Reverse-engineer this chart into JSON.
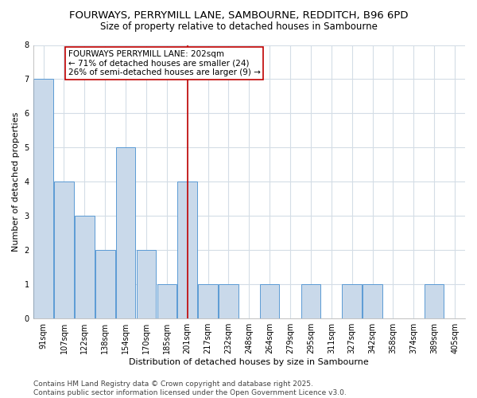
{
  "title": "FOURWAYS, PERRYMILL LANE, SAMBOURNE, REDDITCH, B96 6PD",
  "subtitle": "Size of property relative to detached houses in Sambourne",
  "xlabel": "Distribution of detached houses by size in Sambourne",
  "ylabel": "Number of detached properties",
  "categories": [
    "91sqm",
    "107sqm",
    "122sqm",
    "138sqm",
    "154sqm",
    "170sqm",
    "185sqm",
    "201sqm",
    "217sqm",
    "232sqm",
    "248sqm",
    "264sqm",
    "279sqm",
    "295sqm",
    "311sqm",
    "327sqm",
    "342sqm",
    "358sqm",
    "374sqm",
    "389sqm",
    "405sqm"
  ],
  "values": [
    7,
    4,
    3,
    2,
    5,
    2,
    1,
    4,
    1,
    1,
    0,
    1,
    0,
    1,
    0,
    1,
    1,
    0,
    0,
    1,
    0
  ],
  "bar_color": "#c9d9ea",
  "bar_edge_color": "#5b9bd5",
  "highlight_index": 7,
  "highlight_line_color": "#c00000",
  "annotation_text": "FOURWAYS PERRYMILL LANE: 202sqm\n← 71% of detached houses are smaller (24)\n26% of semi-detached houses are larger (9) →",
  "annotation_box_color": "#c00000",
  "ylim": [
    0,
    8
  ],
  "yticks": [
    0,
    1,
    2,
    3,
    4,
    5,
    6,
    7,
    8
  ],
  "footer": "Contains HM Land Registry data © Crown copyright and database right 2025.\nContains public sector information licensed under the Open Government Licence v3.0.",
  "bg_color": "#ffffff",
  "grid_color": "#d4dde6",
  "title_fontsize": 9.5,
  "subtitle_fontsize": 8.5,
  "label_fontsize": 8,
  "tick_fontsize": 7,
  "footer_fontsize": 6.5,
  "annotation_fontsize": 7.5
}
